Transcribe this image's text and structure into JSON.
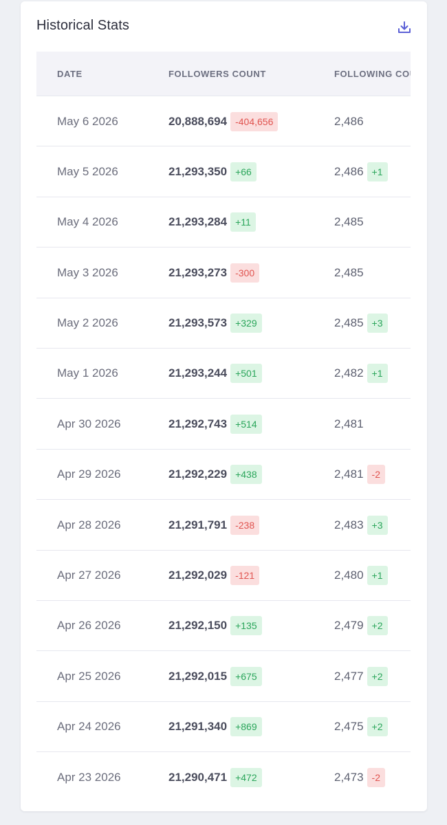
{
  "card": {
    "title": "Historical Stats",
    "download_icon": "download-icon"
  },
  "colors": {
    "positive_bg": "#dcf5e4",
    "positive_text": "#2aa55a",
    "negative_bg": "#fbdede",
    "negative_text": "#e0534f",
    "accent": "#5a5fd6"
  },
  "table": {
    "columns": [
      "DATE",
      "FOLLOWERS COUNT",
      "FOLLOWING COU"
    ],
    "rows": [
      {
        "date": "May 6 2026",
        "followers": "20,888,694",
        "followers_change": "-404,656",
        "following": "2,486",
        "following_change": ""
      },
      {
        "date": "May 5 2026",
        "followers": "21,293,350",
        "followers_change": "+66",
        "following": "2,486",
        "following_change": "+1"
      },
      {
        "date": "May 4 2026",
        "followers": "21,293,284",
        "followers_change": "+11",
        "following": "2,485",
        "following_change": ""
      },
      {
        "date": "May 3 2026",
        "followers": "21,293,273",
        "followers_change": "-300",
        "following": "2,485",
        "following_change": ""
      },
      {
        "date": "May 2 2026",
        "followers": "21,293,573",
        "followers_change": "+329",
        "following": "2,485",
        "following_change": "+3"
      },
      {
        "date": "May 1 2026",
        "followers": "21,293,244",
        "followers_change": "+501",
        "following": "2,482",
        "following_change": "+1"
      },
      {
        "date": "Apr 30 2026",
        "followers": "21,292,743",
        "followers_change": "+514",
        "following": "2,481",
        "following_change": ""
      },
      {
        "date": "Apr 29 2026",
        "followers": "21,292,229",
        "followers_change": "+438",
        "following": "2,481",
        "following_change": "-2"
      },
      {
        "date": "Apr 28 2026",
        "followers": "21,291,791",
        "followers_change": "-238",
        "following": "2,483",
        "following_change": "+3"
      },
      {
        "date": "Apr 27 2026",
        "followers": "21,292,029",
        "followers_change": "-121",
        "following": "2,480",
        "following_change": "+1"
      },
      {
        "date": "Apr 26 2026",
        "followers": "21,292,150",
        "followers_change": "+135",
        "following": "2,479",
        "following_change": "+2"
      },
      {
        "date": "Apr 25 2026",
        "followers": "21,292,015",
        "followers_change": "+675",
        "following": "2,477",
        "following_change": "+2"
      },
      {
        "date": "Apr 24 2026",
        "followers": "21,291,340",
        "followers_change": "+869",
        "following": "2,475",
        "following_change": "+2"
      },
      {
        "date": "Apr 23 2026",
        "followers": "21,290,471",
        "followers_change": "+472",
        "following": "2,473",
        "following_change": "-2"
      }
    ]
  }
}
